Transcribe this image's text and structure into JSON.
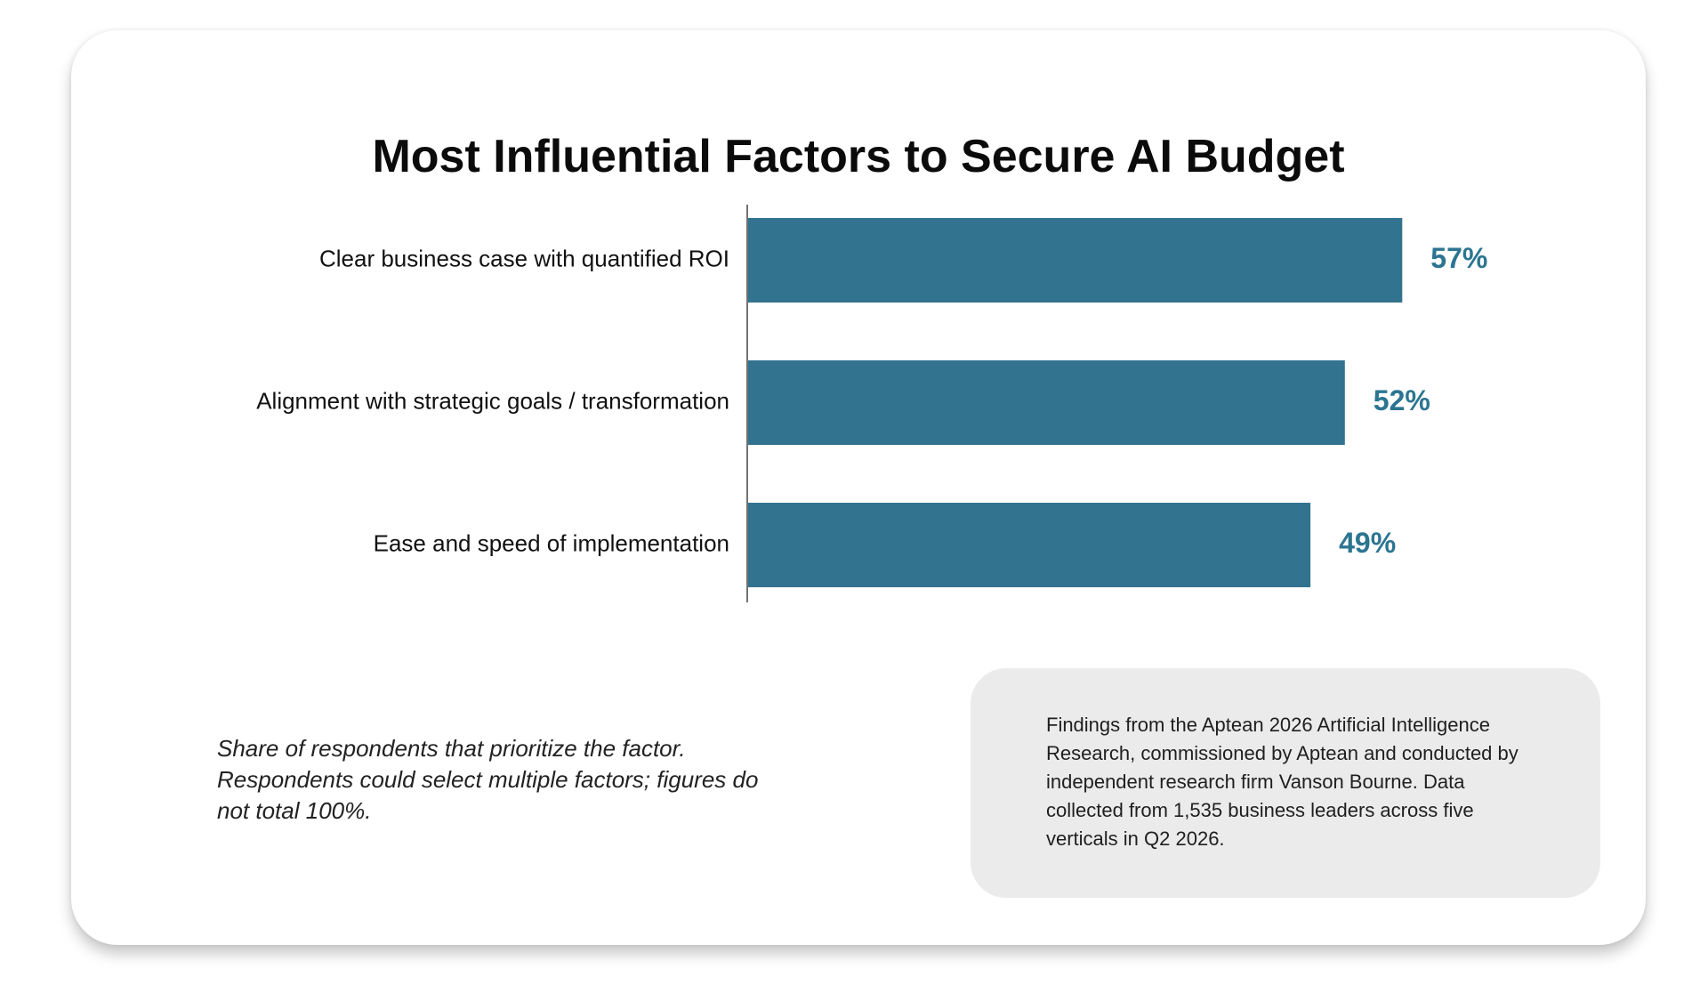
{
  "chart_data": {
    "type": "bar",
    "orientation": "horizontal",
    "title": "Most Influential Factors to Secure AI Budget",
    "categories": [
      "Clear business case with quantified ROI",
      "Alignment with strategic goals / transformation",
      "Ease and speed of implementation"
    ],
    "values": [
      57,
      52,
      49
    ],
    "value_labels": [
      "57%",
      "52%",
      "49%"
    ],
    "unit": "%",
    "xlim": [
      0,
      57
    ],
    "grid": false,
    "bar_color": "#327390",
    "label_color": "#2c7591"
  },
  "footnote": "Share of respondents that prioritize the factor. Respondents could select multiple factors; figures do not total 100%.",
  "source": "Findings from the Aptean 2026 Artificial Intelligence Research, commissioned by Aptean and conducted by independent research firm Vanson Bourne. Data collected from 1,535 business leaders across five verticals in Q2 2026."
}
